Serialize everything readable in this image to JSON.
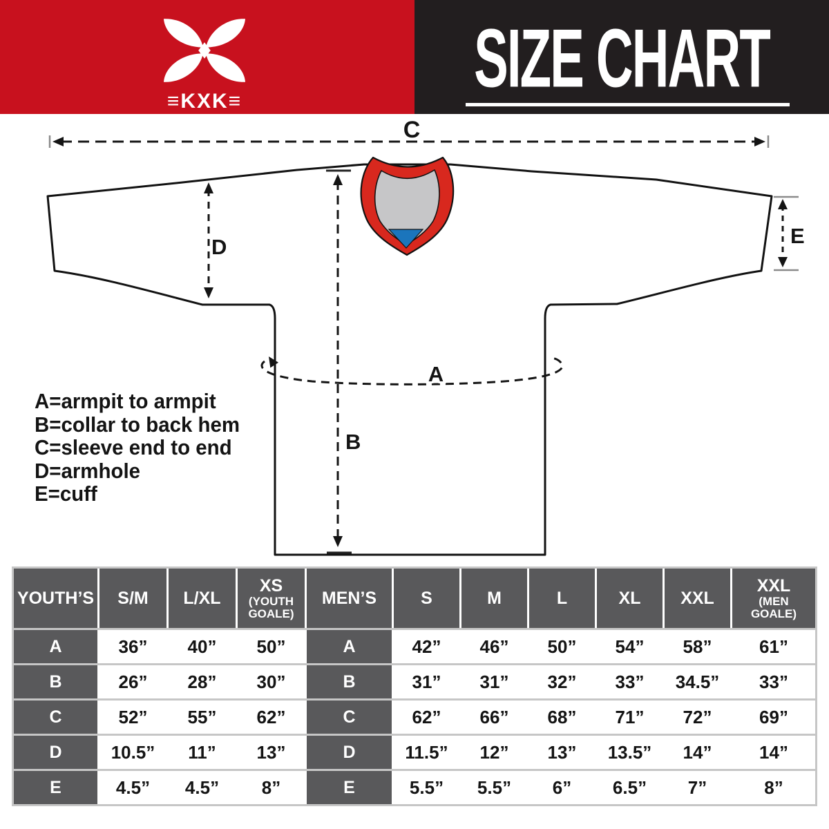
{
  "header": {
    "logo_text": "≡KXK≡",
    "title": "SIZE CHART"
  },
  "legend": {
    "lines": [
      "A=armpit to armpit",
      "B=collar to back hem",
      "C=sleeve end to end",
      "D=armhole",
      "E=cuff"
    ]
  },
  "diagram": {
    "dimension_labels": {
      "a": "A",
      "b": "B",
      "c": "C",
      "d": "D",
      "e": "E"
    }
  },
  "colors": {
    "banner_red": "#c8111e",
    "banner_black": "#221e1f",
    "collar_red": "#d8281e",
    "collar_gray": "#c6c6c8",
    "collar_blue": "#1b75bc",
    "table_header_gray": "#59595b",
    "table_gap_gray": "#c6c6c6"
  },
  "table": {
    "columns": [
      {
        "label": "YOUTH’S"
      },
      {
        "label": "S/M"
      },
      {
        "label": "L/XL"
      },
      {
        "label": "XS",
        "sub": "(YOUTH\nGOALE)"
      },
      {
        "label": "MEN’S"
      },
      {
        "label": "S"
      },
      {
        "label": "M"
      },
      {
        "label": "L"
      },
      {
        "label": "XL"
      },
      {
        "label": "XXL"
      },
      {
        "label": "XXL",
        "sub": "(MEN\nGOALE)"
      }
    ],
    "rows": [
      {
        "label": "A",
        "youth": [
          "36”",
          "40”",
          "50”"
        ],
        "mens": [
          "42”",
          "46”",
          "50”",
          "54”",
          "58”",
          "61”"
        ]
      },
      {
        "label": "B",
        "youth": [
          "26”",
          "28”",
          "30”"
        ],
        "mens": [
          "31”",
          "31”",
          "32”",
          "33”",
          "34.5”",
          "33”"
        ]
      },
      {
        "label": "C",
        "youth": [
          "52”",
          "55”",
          "62”"
        ],
        "mens": [
          "62”",
          "66”",
          "68”",
          "71”",
          "72”",
          "69”"
        ]
      },
      {
        "label": "D",
        "youth": [
          "10.5”",
          "11”",
          "13”"
        ],
        "mens": [
          "11.5”",
          "12”",
          "13”",
          "13.5”",
          "14”",
          "14”"
        ]
      },
      {
        "label": "E",
        "youth": [
          "4.5”",
          "4.5”",
          "8”"
        ],
        "mens": [
          "5.5”",
          "5.5”",
          "6”",
          "6.5”",
          "7”",
          "8”"
        ]
      }
    ]
  }
}
